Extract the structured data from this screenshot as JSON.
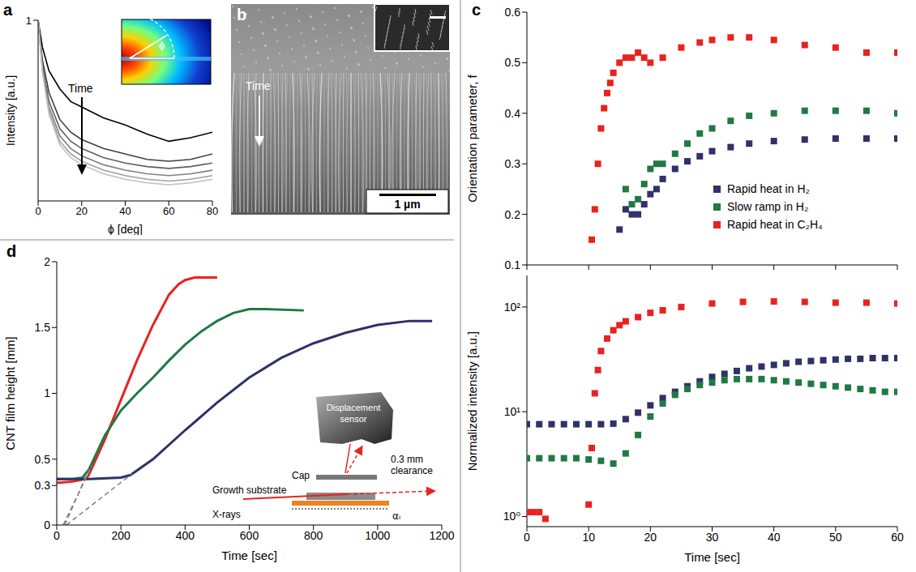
{
  "chart_data": [
    {
      "panel": "a",
      "type": "line",
      "x_label": "ϕ [deg]",
      "y_label": "Intensity [a.u.]",
      "annotation": "Time",
      "inset_label": "ϕ",
      "x": [
        0,
        2,
        5,
        10,
        15,
        20,
        30,
        40,
        50,
        60,
        70,
        80
      ],
      "xlim": [
        0,
        80
      ],
      "xticks": [
        0,
        20,
        40,
        60,
        80
      ],
      "ylim": [
        0,
        1
      ],
      "yticks": [
        1
      ],
      "series": [
        {
          "color": "#000000",
          "values": [
            1,
            0.85,
            0.72,
            0.62,
            0.55,
            0.52,
            0.46,
            0.42,
            0.37,
            0.33,
            0.35,
            0.38
          ]
        },
        {
          "color": "#404040",
          "values": [
            1,
            0.78,
            0.6,
            0.45,
            0.38,
            0.34,
            0.29,
            0.26,
            0.23,
            0.22,
            0.23,
            0.26
          ]
        },
        {
          "color": "#606060",
          "values": [
            1,
            0.75,
            0.55,
            0.4,
            0.33,
            0.29,
            0.24,
            0.21,
            0.19,
            0.18,
            0.19,
            0.21
          ]
        },
        {
          "color": "#808080",
          "values": [
            1,
            0.73,
            0.52,
            0.36,
            0.29,
            0.25,
            0.2,
            0.17,
            0.15,
            0.14,
            0.15,
            0.17
          ]
        },
        {
          "color": "#a0a0a0",
          "values": [
            1,
            0.72,
            0.5,
            0.33,
            0.26,
            0.22,
            0.17,
            0.14,
            0.12,
            0.11,
            0.12,
            0.14
          ]
        },
        {
          "color": "#c0c0c0",
          "values": [
            1,
            0.71,
            0.48,
            0.31,
            0.24,
            0.2,
            0.15,
            0.12,
            0.1,
            0.09,
            0.1,
            0.12
          ]
        }
      ]
    },
    {
      "panel": "c",
      "type": "scatter",
      "marker": "square",
      "y_label": "Orientation parameter, f",
      "tick_labels": "y",
      "legend": "lower right",
      "xlim": [
        0,
        60
      ],
      "xticks": [
        0,
        10,
        20,
        30,
        40,
        50,
        60
      ],
      "ylim": [
        0.1,
        0.6
      ],
      "yticks": [
        0.1,
        0.2,
        0.3,
        0.4,
        0.5,
        0.6
      ],
      "series": [
        {
          "name": "Rapid heat in H₂",
          "color": "#2e3268",
          "x": [
            15,
            16,
            17,
            18,
            19,
            20,
            21,
            22,
            24,
            26,
            28,
            30,
            33,
            36,
            40,
            45,
            50,
            55,
            60
          ],
          "values": [
            0.17,
            0.21,
            0.2,
            0.2,
            0.22,
            0.24,
            0.25,
            0.27,
            0.29,
            0.305,
            0.315,
            0.325,
            0.333,
            0.34,
            0.345,
            0.348,
            0.35,
            0.35,
            0.35
          ]
        },
        {
          "name": "Slow ramp in H₂",
          "color": "#1f7a43",
          "x": [
            16,
            17,
            18,
            19,
            20,
            21,
            22,
            24,
            26,
            28,
            30,
            33,
            36,
            40,
            45,
            50,
            55,
            60
          ],
          "values": [
            0.25,
            0.22,
            0.23,
            0.26,
            0.29,
            0.3,
            0.3,
            0.32,
            0.34,
            0.36,
            0.37,
            0.385,
            0.395,
            0.4,
            0.405,
            0.405,
            0.405,
            0.4
          ]
        },
        {
          "name": "Rapid heat in C₂H₄",
          "color": "#e8231f",
          "x": [
            10.5,
            11,
            11.5,
            12,
            12.5,
            13,
            13.5,
            14,
            15,
            16,
            17,
            18,
            19,
            20,
            22,
            25,
            28,
            30,
            33,
            36,
            40,
            45,
            50,
            55,
            60
          ],
          "values": [
            0.15,
            0.21,
            0.3,
            0.37,
            0.41,
            0.44,
            0.46,
            0.48,
            0.5,
            0.51,
            0.51,
            0.52,
            0.51,
            0.5,
            0.51,
            0.53,
            0.54,
            0.545,
            0.55,
            0.55,
            0.545,
            0.535,
            0.53,
            0.52,
            0.52
          ]
        }
      ]
    },
    {
      "type": "scatter",
      "marker": "square",
      "log": "y",
      "x_label": "Time [sec]",
      "y_label": "Normalized intensity [a.u.]",
      "xlim": [
        0,
        60
      ],
      "xticks": [
        0,
        10,
        20,
        30,
        40,
        50,
        60
      ],
      "ylim": [
        0.8,
        200
      ],
      "yticks": [
        {
          "value": 1,
          "label": "10⁰"
        },
        {
          "value": 10,
          "label": "10¹"
        },
        {
          "value": 100,
          "label": "10²"
        }
      ],
      "series": [
        {
          "color": "#2e3268",
          "x": [
            0,
            2,
            4,
            6,
            8,
            10,
            12,
            14,
            16,
            18,
            20,
            22,
            24,
            26,
            28,
            30,
            32,
            34,
            36,
            38,
            40,
            42,
            44,
            46,
            48,
            50,
            52,
            54,
            56,
            58,
            60
          ],
          "values": [
            7.6,
            7.6,
            7.6,
            7.6,
            7.6,
            7.6,
            7.6,
            7.7,
            8.5,
            9.8,
            11.5,
            13.5,
            15.5,
            17.5,
            19.5,
            21.5,
            23,
            24.5,
            26,
            27,
            28,
            29,
            30,
            30.5,
            31,
            31.5,
            32,
            32,
            32.5,
            32.5,
            32.5
          ]
        },
        {
          "color": "#1f7a43",
          "x": [
            0,
            2,
            4,
            6,
            8,
            10,
            12,
            14,
            16,
            18,
            20,
            22,
            24,
            26,
            28,
            30,
            32,
            34,
            36,
            38,
            40,
            42,
            44,
            46,
            48,
            50,
            52,
            54,
            56,
            58,
            60
          ],
          "values": [
            3.6,
            3.6,
            3.6,
            3.6,
            3.6,
            3.5,
            3.4,
            3.2,
            4,
            6,
            9,
            12,
            14.5,
            16.5,
            18,
            19,
            20,
            20.5,
            20.5,
            20.5,
            20,
            19.5,
            19,
            18.5,
            18,
            17.5,
            17,
            16.5,
            16,
            15.5,
            15.5
          ]
        },
        {
          "color": "#e8231f",
          "x": [
            0,
            1,
            2,
            3,
            10,
            10.5,
            11,
            11.5,
            12,
            13,
            14,
            15,
            16,
            18,
            20,
            22,
            25,
            30,
            35,
            40,
            45,
            50,
            55,
            60
          ],
          "values": [
            1.1,
            1.1,
            1.1,
            0.95,
            1.3,
            4.5,
            15,
            25,
            38,
            50,
            60,
            67,
            73,
            80,
            88,
            93,
            100,
            108,
            112,
            113,
            112,
            110,
            110,
            108
          ]
        }
      ]
    },
    {
      "panel": "d",
      "type": "line",
      "x_label": "Time [sec]",
      "y_label": "CNT film height [mm]",
      "xlim": [
        0,
        1200
      ],
      "xticks": [
        0,
        200,
        400,
        600,
        800,
        1000,
        1200
      ],
      "ylim": [
        0,
        2
      ],
      "yticks": [
        0,
        0.3,
        0.5,
        1,
        1.5,
        2
      ],
      "series": [
        {
          "color": "#e8231f",
          "x": [
            0,
            50,
            90,
            100,
            150,
            200,
            250,
            300,
            350,
            380,
            400,
            430,
            500
          ],
          "values": [
            0.32,
            0.33,
            0.35,
            0.38,
            0.65,
            0.95,
            1.25,
            1.52,
            1.75,
            1.83,
            1.86,
            1.88,
            1.88
          ]
        },
        {
          "color": "#1f7a43",
          "x": [
            0,
            50,
            80,
            100,
            150,
            200,
            250,
            300,
            350,
            400,
            450,
            500,
            550,
            600,
            650,
            770
          ],
          "values": [
            0.35,
            0.35,
            0.36,
            0.42,
            0.68,
            0.87,
            1.0,
            1.12,
            1.25,
            1.37,
            1.47,
            1.55,
            1.61,
            1.64,
            1.64,
            1.63
          ]
        },
        {
          "color": "#2e3268",
          "x": [
            0,
            100,
            200,
            230,
            300,
            400,
            500,
            600,
            700,
            800,
            900,
            1000,
            1100,
            1170
          ],
          "values": [
            0.35,
            0.35,
            0.36,
            0.38,
            0.5,
            0.72,
            0.93,
            1.12,
            1.27,
            1.38,
            1.46,
            1.52,
            1.55,
            1.55
          ]
        },
        {
          "color": "#808080",
          "line_style": "dashed",
          "x": [
            20,
            110
          ],
          "values": [
            0,
            0.45
          ]
        },
        {
          "color": "#808080",
          "line_style": "dashed",
          "x": [
            25,
            100
          ],
          "values": [
            0,
            0.42
          ]
        },
        {
          "color": "#808080",
          "line_style": "dashed",
          "x": [
            30,
            235
          ],
          "values": [
            0,
            0.39
          ]
        }
      ],
      "diagram": {
        "sensor": "Displacement sensor",
        "cap": "Cap",
        "clearance": "0.3 mm clearance",
        "substrate": "Growth substrate",
        "beam": "X-rays",
        "angle": "αᵢ"
      }
    }
  ],
  "panel_b": {
    "panel": "b",
    "arrow_label": "Time",
    "scale_bar": "1 µm"
  }
}
